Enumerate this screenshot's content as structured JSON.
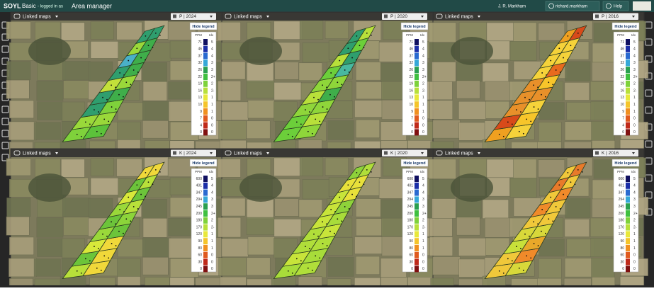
{
  "header": {
    "logo": "SOYL",
    "product": "Basic",
    "logged_in_as": "- logged in as",
    "role": "Area manager",
    "user": "J. R. Markham",
    "account": "richard.markham",
    "help": "Help"
  },
  "panels": [
    {
      "linked": "Linked maps",
      "layer": "P | 2024",
      "legend_button": "Hide legend",
      "legend": {
        "unit": "PPM",
        "index_head": "Idx",
        "values": [
          "71",
          "46",
          "37",
          "32",
          "26",
          "22",
          "19",
          "16",
          "13",
          "10",
          "9",
          "7",
          "4",
          "0"
        ],
        "indices": [
          "5",
          "4",
          "4",
          "3",
          "3",
          "2+",
          "2",
          "2-",
          "1",
          "1",
          "1",
          "0",
          "0",
          "0"
        ]
      }
    },
    {
      "linked": "Linked maps",
      "layer": "P | 2020",
      "legend_button": "Hide legend",
      "legend": {
        "unit": "PPM",
        "index_head": "Idx",
        "values": [
          "71",
          "46",
          "37",
          "32",
          "26",
          "22",
          "19",
          "16",
          "13",
          "10",
          "9",
          "7",
          "4",
          "0"
        ],
        "indices": [
          "5",
          "4",
          "4",
          "3",
          "3",
          "2+",
          "2",
          "2-",
          "1",
          "1",
          "1",
          "0",
          "0",
          "0"
        ]
      }
    },
    {
      "linked": "Linked maps",
      "layer": "P | 2016",
      "legend_button": "Hide legend",
      "legend": {
        "unit": "PPM",
        "index_head": "Idx",
        "values": [
          "71",
          "46",
          "37",
          "32",
          "26",
          "22",
          "19",
          "16",
          "13",
          "10",
          "9",
          "7",
          "4",
          "0"
        ],
        "indices": [
          "5",
          "4",
          "4",
          "3",
          "3",
          "2+",
          "2",
          "2-",
          "1",
          "1",
          "1",
          "0",
          "0",
          "0"
        ]
      }
    },
    {
      "linked": "Linked maps",
      "layer": "K | 2024",
      "legend_button": "Hide legend",
      "legend": {
        "unit": "PPM",
        "index_head": "Idx",
        "values": [
          "600",
          "401",
          "347",
          "294",
          "245",
          "200",
          "180",
          "170",
          "120",
          "90",
          "80",
          "60",
          "30",
          "0"
        ],
        "indices": [
          "5",
          "4",
          "4",
          "3",
          "3",
          "2+",
          "2",
          "2-",
          "1",
          "1",
          "1",
          "0",
          "0",
          "0"
        ]
      }
    },
    {
      "linked": "Linked maps",
      "layer": "K | 2020",
      "legend_button": "Hide legend",
      "legend": {
        "unit": "PPM",
        "index_head": "Idx",
        "values": [
          "600",
          "401",
          "347",
          "294",
          "245",
          "200",
          "180",
          "170",
          "120",
          "90",
          "80",
          "60",
          "30",
          "0"
        ],
        "indices": [
          "5",
          "4",
          "4",
          "3",
          "3",
          "2+",
          "2",
          "2-",
          "1",
          "1",
          "1",
          "0",
          "0",
          "0"
        ]
      }
    },
    {
      "linked": "Linked maps",
      "layer": "K | 2016",
      "legend_button": "Hide legend",
      "legend": {
        "unit": "PPM",
        "index_head": "Idx",
        "values": [
          "600",
          "401",
          "347",
          "294",
          "245",
          "200",
          "180",
          "170",
          "120",
          "90",
          "80",
          "60",
          "30",
          "0"
        ],
        "indices": [
          "5",
          "4",
          "4",
          "3",
          "3",
          "2+",
          "2",
          "2-",
          "1",
          "1",
          "1",
          "0",
          "0",
          "0"
        ]
      }
    }
  ]
}
